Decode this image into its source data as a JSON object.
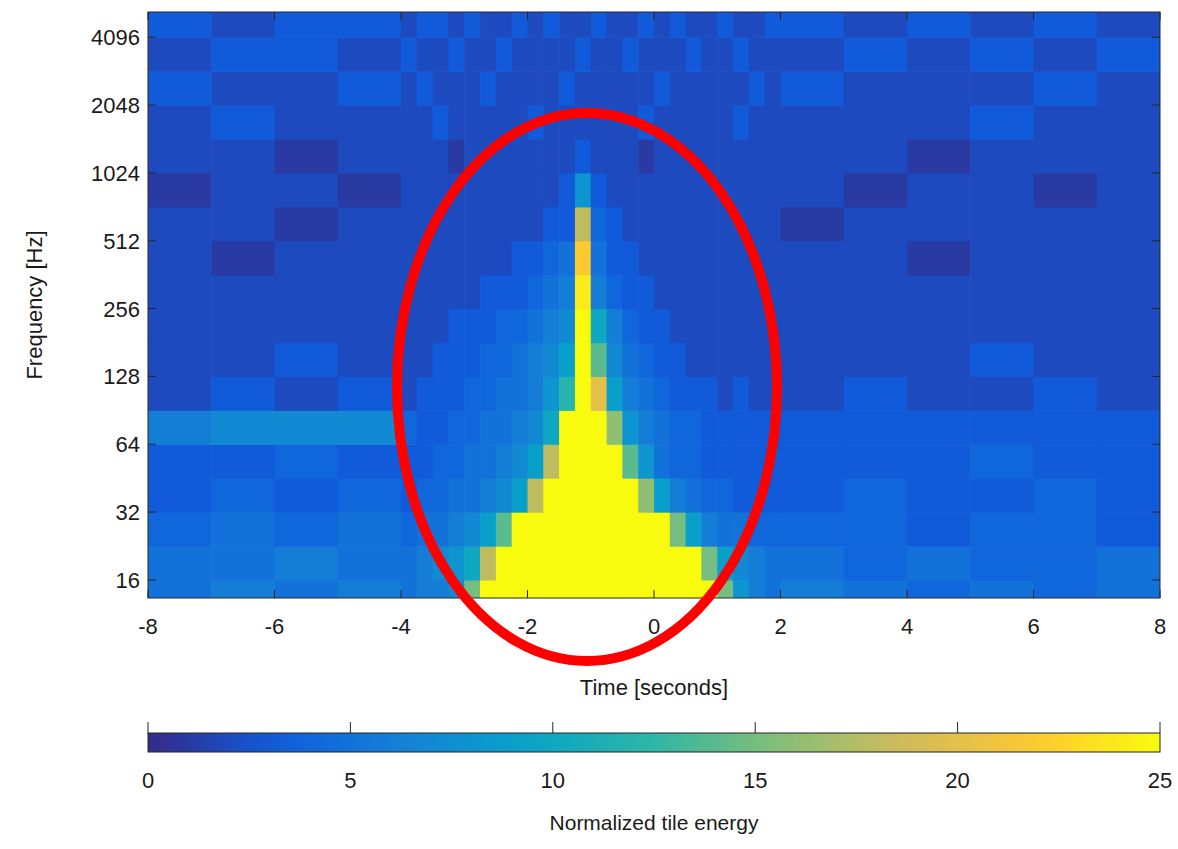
{
  "chart_data": {
    "type": "heatmap",
    "x_label": "Time [seconds]",
    "y_label": "Frequency [Hz]",
    "xlim": [
      -8,
      8
    ],
    "xticks": [
      -8,
      -6,
      -4,
      -2,
      0,
      2,
      4,
      6,
      8
    ],
    "ylim": [
      13.3,
      5300
    ],
    "yticks": [
      16,
      32,
      64,
      128,
      256,
      512,
      1024,
      2048,
      4096
    ],
    "log": "y",
    "grid": false,
    "x_bins": [
      -8,
      -7,
      -6,
      -5,
      -4,
      -3.75,
      -3.5,
      -3.25,
      -3,
      -2.75,
      -2.5,
      -2.25,
      -2,
      -1.75,
      -1.5,
      -1.25,
      -1,
      -0.75,
      -0.5,
      -0.25,
      0,
      0.25,
      0.5,
      0.75,
      1,
      1.25,
      1.5,
      1.75,
      2,
      3,
      4,
      5,
      6,
      7,
      8
    ],
    "y_bins": [
      13.3,
      16,
      22.6,
      32,
      45.3,
      64,
      90.5,
      128,
      181,
      256,
      362,
      512,
      724,
      1024,
      1448,
      2048,
      2896,
      4096,
      5300
    ],
    "cells": [
      [
        5,
        6,
        5,
        6,
        5,
        6,
        6,
        7,
        15,
        25,
        25,
        25,
        25,
        25,
        25,
        25,
        25,
        25,
        25,
        25,
        25,
        25,
        25,
        25,
        15,
        8,
        6,
        5,
        6,
        5,
        4,
        5,
        4,
        5
      ],
      [
        5,
        5,
        6,
        5,
        5,
        6,
        7,
        8,
        10,
        18,
        25,
        25,
        25,
        25,
        25,
        25,
        25,
        25,
        25,
        25,
        25,
        25,
        25,
        15,
        9,
        7,
        6,
        5,
        5,
        4,
        5,
        4,
        4,
        5
      ],
      [
        4,
        5,
        4,
        5,
        4,
        5,
        5,
        6,
        7,
        9,
        14,
        25,
        25,
        25,
        25,
        25,
        25,
        25,
        25,
        25,
        25,
        15,
        9,
        6,
        5,
        5,
        4,
        4,
        4,
        4,
        3,
        4,
        4,
        3
      ],
      [
        3,
        4,
        3,
        4,
        3,
        4,
        4,
        5,
        5,
        6,
        7,
        9,
        18,
        25,
        25,
        25,
        25,
        25,
        25,
        16,
        9,
        6,
        5,
        4,
        4,
        3,
        3,
        3,
        3,
        4,
        3,
        3,
        4,
        3
      ],
      [
        3,
        3,
        4,
        3,
        3,
        3,
        4,
        4,
        5,
        5,
        6,
        7,
        9,
        18,
        25,
        25,
        25,
        25,
        14,
        8,
        5,
        4,
        4,
        3,
        3,
        3,
        3,
        3,
        3,
        3,
        3,
        4,
        3,
        3
      ],
      [
        6,
        7,
        7,
        7,
        4,
        3,
        3,
        4,
        4,
        5,
        5,
        6,
        7,
        10,
        25,
        25,
        25,
        16,
        8,
        6,
        5,
        4,
        4,
        3,
        3,
        3,
        3,
        3,
        3,
        3,
        3,
        3,
        3,
        3
      ],
      [
        2,
        3,
        2,
        3,
        2,
        3,
        3,
        3,
        4,
        4,
        5,
        5,
        6,
        8,
        12,
        25,
        20,
        9,
        6,
        5,
        4,
        3,
        3,
        3,
        2,
        3,
        2,
        2,
        2,
        3,
        2,
        2,
        3,
        2
      ],
      [
        2,
        2,
        3,
        2,
        2,
        2,
        3,
        3,
        3,
        4,
        4,
        5,
        6,
        7,
        9,
        25,
        14,
        7,
        5,
        4,
        3,
        3,
        2,
        2,
        2,
        2,
        2,
        2,
        2,
        2,
        2,
        3,
        2,
        2
      ],
      [
        2,
        2,
        2,
        2,
        2,
        2,
        2,
        3,
        3,
        3,
        4,
        4,
        5,
        6,
        7,
        25,
        10,
        6,
        4,
        3,
        3,
        2,
        2,
        2,
        2,
        2,
        2,
        2,
        2,
        2,
        2,
        2,
        2,
        2
      ],
      [
        2,
        2,
        2,
        2,
        2,
        2,
        2,
        2,
        2,
        3,
        3,
        3,
        4,
        5,
        6,
        24,
        6,
        4,
        3,
        3,
        2,
        2,
        2,
        2,
        2,
        2,
        2,
        2,
        2,
        2,
        2,
        2,
        2,
        2
      ],
      [
        2,
        1,
        2,
        2,
        2,
        2,
        2,
        2,
        2,
        2,
        2,
        3,
        3,
        4,
        5,
        22,
        5,
        3,
        3,
        2,
        2,
        2,
        2,
        2,
        2,
        2,
        2,
        2,
        2,
        2,
        1,
        2,
        2,
        2
      ],
      [
        2,
        2,
        1,
        2,
        2,
        2,
        2,
        2,
        2,
        2,
        2,
        2,
        2,
        3,
        3,
        18,
        4,
        3,
        2,
        2,
        2,
        2,
        2,
        2,
        2,
        2,
        2,
        2,
        1,
        2,
        2,
        2,
        2,
        2
      ],
      [
        1,
        2,
        2,
        1,
        2,
        2,
        2,
        2,
        2,
        2,
        2,
        2,
        2,
        2,
        3,
        8,
        3,
        2,
        2,
        2,
        2,
        2,
        2,
        2,
        2,
        2,
        2,
        2,
        2,
        1,
        2,
        2,
        1,
        2
      ],
      [
        2,
        2,
        1,
        2,
        2,
        2,
        2,
        1,
        2,
        2,
        2,
        2,
        2,
        2,
        2,
        3,
        2,
        2,
        2,
        1,
        2,
        2,
        2,
        2,
        2,
        2,
        2,
        2,
        2,
        2,
        1,
        2,
        2,
        2
      ],
      [
        2,
        3,
        2,
        2,
        2,
        2,
        3,
        2,
        2,
        2,
        2,
        2,
        3,
        2,
        2,
        2,
        2,
        2,
        2,
        3,
        2,
        2,
        2,
        2,
        2,
        3,
        2,
        2,
        2,
        2,
        2,
        3,
        2,
        2
      ],
      [
        3,
        2,
        2,
        3,
        2,
        3,
        2,
        2,
        2,
        3,
        2,
        2,
        2,
        2,
        3,
        2,
        2,
        2,
        2,
        2,
        3,
        2,
        2,
        2,
        2,
        2,
        3,
        2,
        3,
        2,
        2,
        2,
        3,
        2
      ],
      [
        2,
        3,
        3,
        2,
        3,
        2,
        2,
        3,
        2,
        2,
        3,
        2,
        2,
        2,
        2,
        3,
        2,
        2,
        3,
        2,
        2,
        2,
        3,
        2,
        2,
        3,
        2,
        2,
        2,
        3,
        2,
        3,
        2,
        3
      ],
      [
        3,
        2,
        3,
        3,
        2,
        3,
        3,
        2,
        3,
        2,
        2,
        3,
        2,
        3,
        2,
        2,
        3,
        2,
        2,
        3,
        2,
        3,
        2,
        2,
        3,
        2,
        2,
        3,
        3,
        2,
        3,
        2,
        3,
        2
      ]
    ],
    "colorbar": {
      "label": "Normalized tile energy",
      "range": [
        0,
        25
      ],
      "ticks": [
        0,
        5,
        10,
        15,
        20,
        25
      ]
    }
  }
}
